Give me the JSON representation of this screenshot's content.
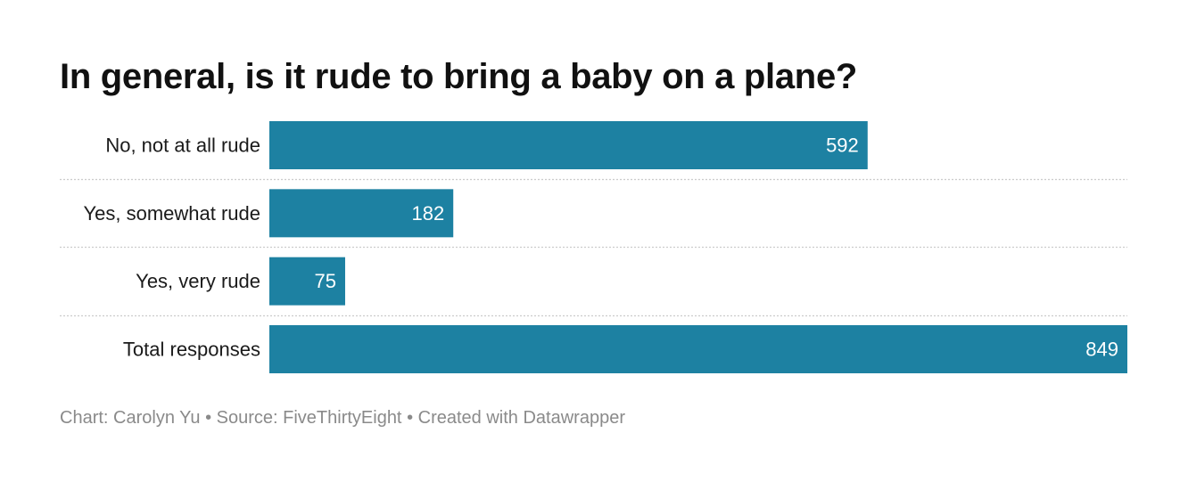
{
  "chart_data": {
    "type": "bar",
    "orientation": "horizontal",
    "title": "In general, is it rude to bring a baby on a plane?",
    "categories": [
      "No, not at all rude",
      "Yes, somewhat rude",
      "Yes, very rude",
      "Total responses"
    ],
    "values": [
      592,
      182,
      75,
      849
    ],
    "data_labels": [
      "592",
      "182",
      "75",
      "849"
    ],
    "xlim": [
      0,
      849
    ],
    "grid": false,
    "legend": "none",
    "bar_color": "#1d81a2",
    "separator_color": "#cccccc"
  },
  "footer": {
    "chart_credit": "Chart: Carolyn Yu",
    "source": "Source: FiveThirtyEight",
    "tool": "Created with Datawrapper",
    "separator": "•"
  },
  "colors": {
    "title": "#111111",
    "label": "#1a1a1a",
    "value_label": "#ffffff",
    "footer": "#8a8a8a"
  }
}
